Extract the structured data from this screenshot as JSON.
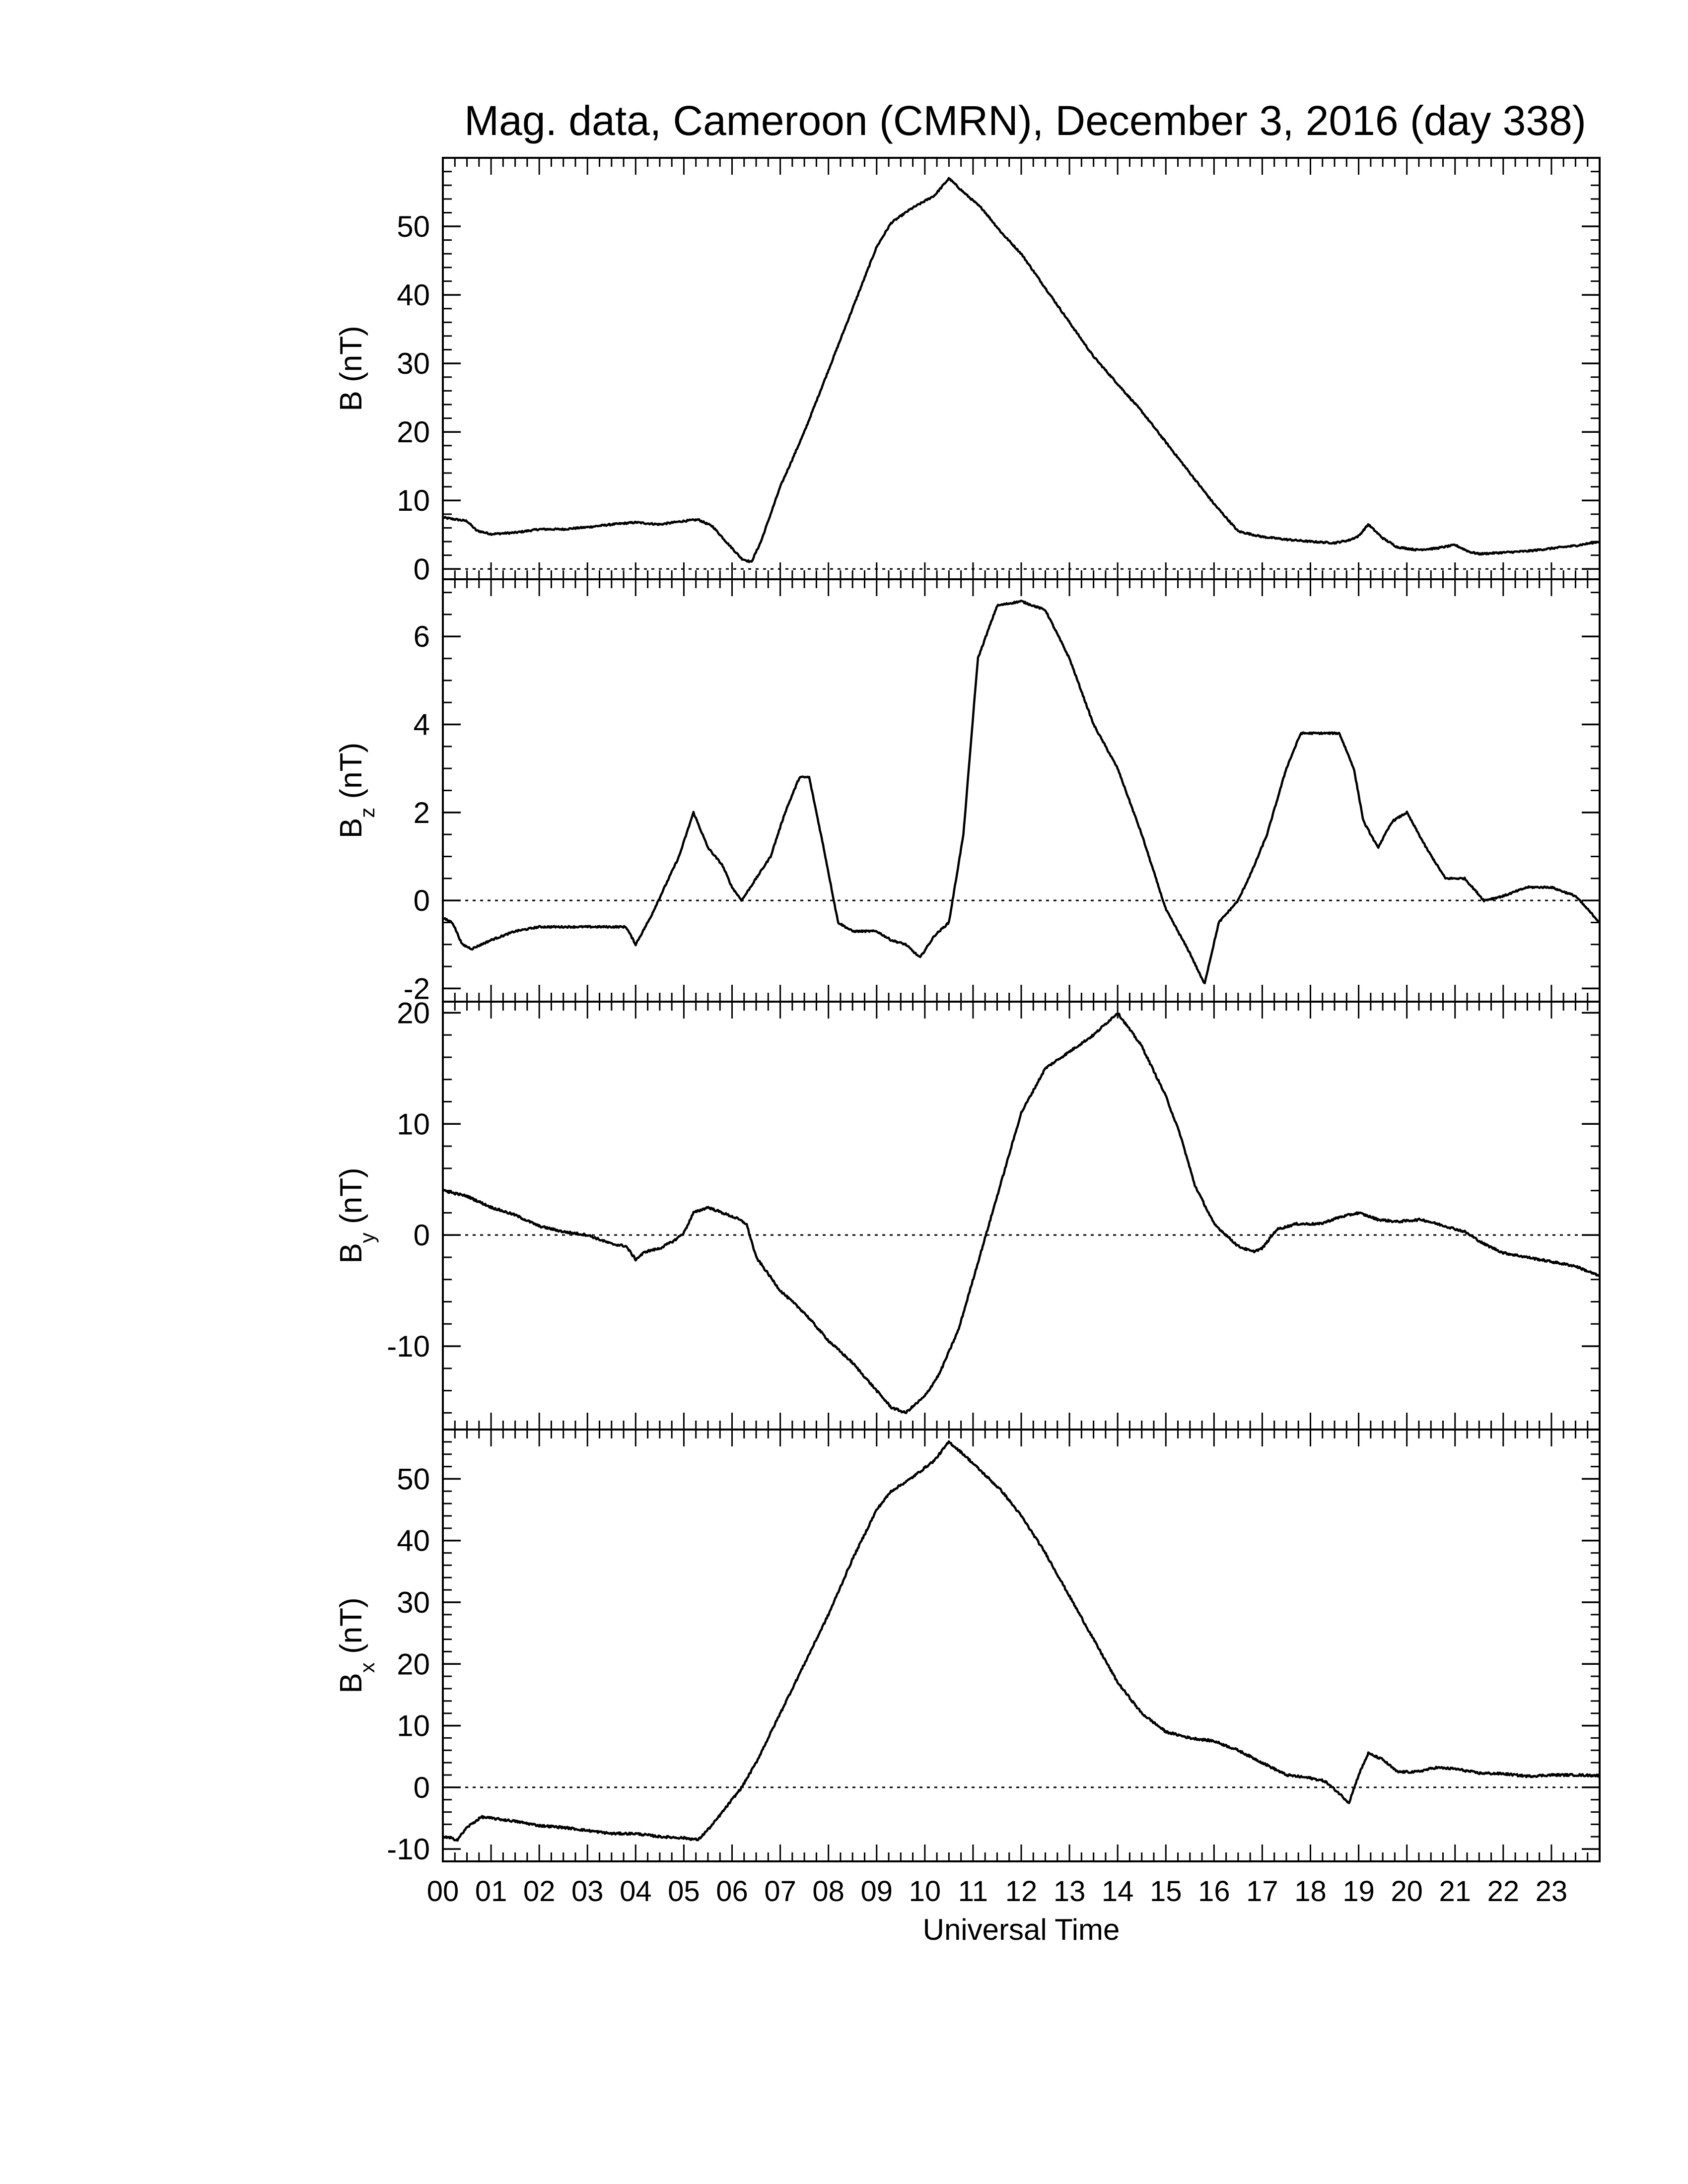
{
  "figure": {
    "title": "Mag. data, Cameroon (CMRN), December 3, 2016 (day 338)",
    "xlabel": "Universal Time",
    "x_tick_labels": [
      "00",
      "01",
      "02",
      "03",
      "04",
      "05",
      "06",
      "07",
      "08",
      "09",
      "10",
      "11",
      "12",
      "13",
      "14",
      "15",
      "16",
      "17",
      "18",
      "19",
      "20",
      "21",
      "22",
      "23"
    ]
  },
  "chart_data": [
    {
      "type": "line",
      "ylabel": "B (nT)",
      "ylabel_main": "B",
      "ylabel_sub": "",
      "xlim": [
        0,
        24
      ],
      "ylim": [
        -1.5,
        60
      ],
      "yticks": [
        0,
        10,
        20,
        30,
        40,
        50
      ],
      "zero_line": true,
      "noise": 0.12,
      "series": [
        {
          "x": [
            0,
            0.3,
            0.5,
            0.7,
            1.0,
            1.5,
            2,
            2.5,
            3,
            3.5,
            4,
            4.5,
            5,
            5.3,
            5.6,
            5.9,
            6.2,
            6.4,
            6.6,
            7,
            7.5,
            8,
            8.5,
            9,
            9.3,
            9.7,
            10.2,
            10.5,
            10.8,
            11.2,
            11.6,
            12,
            12.5,
            13,
            13.5,
            14,
            14.5,
            15,
            15.5,
            16,
            16.5,
            17,
            17.5,
            18,
            18.5,
            18.8,
            19.0,
            19.2,
            19.5,
            19.8,
            20.2,
            20.6,
            21,
            21.3,
            21.5,
            22,
            22.5,
            23,
            23.5,
            24
          ],
          "y": [
            7.5,
            7.2,
            7.0,
            5.6,
            5.1,
            5.3,
            5.8,
            5.8,
            6.1,
            6.5,
            6.8,
            6.5,
            7.0,
            7.2,
            6.2,
            3.8,
            1.5,
            1.0,
            4.0,
            12,
            20,
            29,
            38,
            47,
            50.5,
            52.5,
            54.5,
            57,
            55,
            52.5,
            49,
            46,
            41,
            36,
            31,
            27,
            23,
            18.5,
            14,
            9.5,
            5.5,
            4.7,
            4.3,
            4.0,
            3.8,
            4.2,
            4.8,
            6.5,
            4.5,
            3.2,
            2.8,
            3.0,
            3.5,
            2.5,
            2.2,
            2.4,
            2.6,
            3.0,
            3.4,
            4.0
          ]
        }
      ]
    },
    {
      "type": "line",
      "ylabel": "Bz (nT)",
      "ylabel_main": "B",
      "ylabel_sub": "z",
      "xlim": [
        0,
        24
      ],
      "ylim": [
        -2.3,
        7.3
      ],
      "yticks": [
        -2,
        0,
        2,
        4,
        6
      ],
      "zero_line": true,
      "noise": 0.12,
      "series": [
        {
          "x": [
            0,
            0.2,
            0.4,
            0.6,
            1.0,
            1.5,
            2,
            2.5,
            3,
            3.5,
            3.8,
            4.0,
            4.3,
            4.6,
            4.9,
            5.2,
            5.5,
            5.8,
            6.0,
            6.2,
            6.5,
            6.8,
            7.1,
            7.4,
            7.6,
            7.9,
            8.2,
            8.5,
            9,
            9.3,
            9.6,
            9.9,
            10.2,
            10.5,
            10.8,
            11.1,
            11.5,
            12,
            12.5,
            13,
            13.5,
            14,
            14.5,
            15,
            15.5,
            15.8,
            16.1,
            16.5,
            16.8,
            17.1,
            17.5,
            17.8,
            18.2,
            18.6,
            18.9,
            19.1,
            19.4,
            19.7,
            20,
            20.4,
            20.8,
            21.2,
            21.6,
            22,
            22.5,
            23,
            23.5,
            24
          ],
          "y": [
            -0.4,
            -0.5,
            -1.0,
            -1.1,
            -0.9,
            -0.7,
            -0.6,
            -0.6,
            -0.6,
            -0.6,
            -0.6,
            -1.0,
            -0.4,
            0.3,
            1.0,
            2.0,
            1.2,
            0.8,
            0.3,
            0.0,
            0.5,
            1.0,
            2.0,
            2.8,
            2.8,
            1.2,
            -0.5,
            -0.7,
            -0.7,
            -0.9,
            -1.0,
            -1.3,
            -0.8,
            -0.5,
            1.5,
            5.5,
            6.7,
            6.8,
            6.6,
            5.5,
            4.0,
            3.0,
            1.5,
            -0.2,
            -1.2,
            -1.9,
            -0.5,
            0.0,
            0.7,
            1.5,
            3.0,
            3.8,
            3.8,
            3.8,
            3.0,
            1.8,
            1.2,
            1.8,
            2.0,
            1.2,
            0.5,
            0.5,
            0.0,
            0.1,
            0.3,
            0.3,
            0.1,
            -0.5
          ]
        }
      ]
    },
    {
      "type": "line",
      "ylabel": "By (nT)",
      "ylabel_main": "B",
      "ylabel_sub": "y",
      "xlim": [
        0,
        24
      ],
      "ylim": [
        -17.5,
        21
      ],
      "yticks": [
        -10,
        0,
        10,
        20
      ],
      "zero_line": true,
      "noise": 0.15,
      "series": [
        {
          "x": [
            0,
            0.5,
            1,
            1.5,
            2,
            2.5,
            3,
            3.5,
            3.8,
            4.0,
            4.2,
            4.5,
            4.8,
            5.0,
            5.2,
            5.5,
            5.8,
            6.1,
            6.3,
            6.5,
            7,
            7.5,
            8,
            8.5,
            9,
            9.3,
            9.6,
            10,
            10.3,
            10.7,
            11,
            11.3,
            11.6,
            12,
            12.5,
            13,
            13.5,
            14,
            14.5,
            15,
            15.3,
            15.6,
            16,
            16.5,
            16.8,
            17.0,
            17.3,
            17.7,
            18.2,
            18.6,
            19,
            19.4,
            19.8,
            20.3,
            20.8,
            21.2,
            21.6,
            22,
            22.5,
            23,
            23.5,
            24
          ],
          "y": [
            4.0,
            3.5,
            2.5,
            1.8,
            0.8,
            0.3,
            0.0,
            -0.8,
            -1.0,
            -2.2,
            -1.5,
            -1.2,
            -0.5,
            0.2,
            2.0,
            2.5,
            2.0,
            1.5,
            1.0,
            -2.0,
            -5.0,
            -7.0,
            -9.5,
            -11.5,
            -14.0,
            -15.5,
            -16.0,
            -14.5,
            -12.5,
            -8.5,
            -4.0,
            0.5,
            5.0,
            11.0,
            15.0,
            16.5,
            18.0,
            20.0,
            17.0,
            12.5,
            9.0,
            4.5,
            1.0,
            -1.0,
            -1.5,
            -1.2,
            0.5,
            1.0,
            1.0,
            1.6,
            2.0,
            1.4,
            1.2,
            1.4,
            0.8,
            0.3,
            -0.8,
            -1.6,
            -2.0,
            -2.4,
            -2.8,
            -3.7
          ]
        }
      ]
    },
    {
      "type": "line",
      "ylabel": "Bx (nT)",
      "ylabel_main": "B",
      "ylabel_sub": "x",
      "xlim": [
        0,
        24
      ],
      "ylim": [
        -12,
        58
      ],
      "yticks": [
        -10,
        0,
        10,
        20,
        30,
        40,
        50
      ],
      "zero_line": true,
      "noise": 0.15,
      "series": [
        {
          "x": [
            0,
            0.3,
            0.5,
            0.8,
            1,
            1.5,
            2,
            2.5,
            3,
            3.5,
            4,
            4.5,
            5,
            5.3,
            5.6,
            5.9,
            6.2,
            6.5,
            7,
            7.5,
            8,
            8.5,
            9,
            9.3,
            9.7,
            10.2,
            10.5,
            10.8,
            11.2,
            11.6,
            12,
            12.5,
            13,
            13.5,
            14,
            14.5,
            15,
            15.5,
            16,
            16.5,
            17,
            17.5,
            18,
            18.3,
            18.6,
            18.8,
            19.0,
            19.2,
            19.5,
            19.8,
            20.2,
            20.6,
            21,
            21.5,
            22,
            22.5,
            23,
            23.5,
            24
          ],
          "y": [
            -8.0,
            -8.5,
            -6.5,
            -4.8,
            -5.0,
            -5.5,
            -6.2,
            -6.5,
            -7.0,
            -7.5,
            -7.5,
            -8.0,
            -8.2,
            -8.5,
            -6.0,
            -3.0,
            0.0,
            4.0,
            12,
            20,
            28,
            37,
            45,
            48,
            50,
            53,
            56,
            54,
            51,
            48,
            44,
            38,
            31,
            24,
            17,
            12,
            9,
            8,
            7.5,
            6.0,
            4.0,
            2.0,
            1.5,
            1.0,
            -1.0,
            -2.5,
            2.0,
            5.5,
            4.5,
            2.5,
            2.5,
            3.2,
            3.0,
            2.3,
            2.2,
            1.8,
            2.0,
            2.0,
            1.9
          ]
        }
      ]
    }
  ]
}
